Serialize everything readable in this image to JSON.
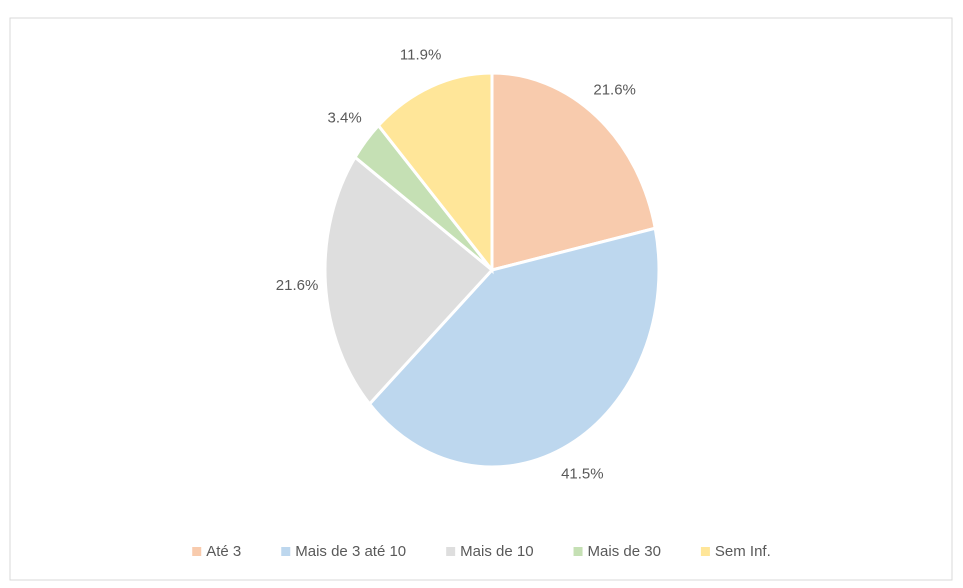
{
  "chart_data": {
    "type": "pie",
    "categories": [
      "Até 3",
      "Mais de 3 até 10",
      "Mais de 10",
      "Mais de 30",
      "Sem Inf."
    ],
    "values": [
      21.6,
      41.5,
      21.6,
      3.4,
      11.9
    ],
    "value_labels": [
      "21.6%",
      "41.5%",
      "21.6%",
      "3.4%",
      "11.9%"
    ],
    "colors": [
      "#f8cbad",
      "#bdd7ee",
      "#dedede",
      "#c5e0b4",
      "#ffe699"
    ],
    "legend": "bottom"
  }
}
